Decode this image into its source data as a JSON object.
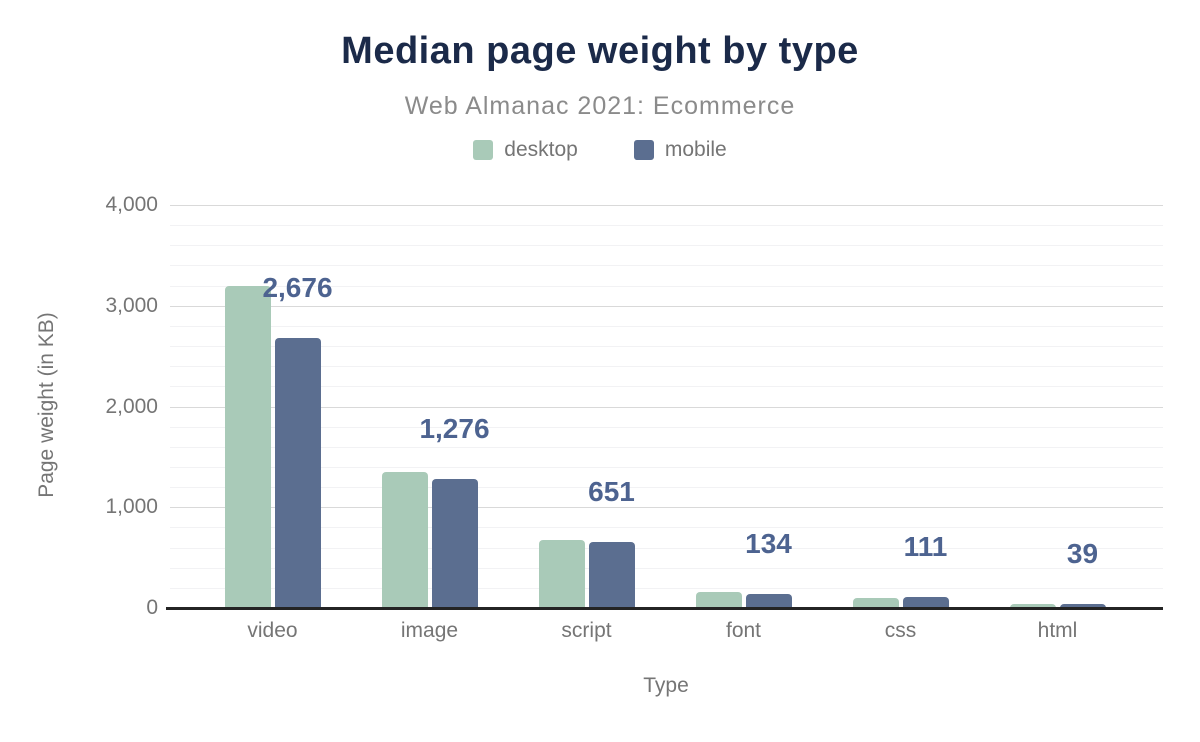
{
  "chart_data": {
    "type": "bar",
    "title": "Median page weight by type",
    "subtitle": "Web Almanac 2021: Ecommerce",
    "xlabel": "Type",
    "ylabel": "Page weight (in KB)",
    "categories": [
      "video",
      "image",
      "script",
      "font",
      "css",
      "html"
    ],
    "series": [
      {
        "name": "desktop",
        "color": "#a9cab8",
        "values": [
          3200,
          1350,
          675,
          160,
          100,
          42
        ]
      },
      {
        "name": "mobile",
        "color": "#5b6e90",
        "values": [
          2676,
          1276,
          651,
          134,
          111,
          39
        ],
        "data_labels": [
          "2,676",
          "1,276",
          "651",
          "134",
          "111",
          "39"
        ]
      }
    ],
    "ylim": [
      0,
      4000
    ],
    "yticks": [
      {
        "value": 0,
        "label": "0"
      },
      {
        "value": 1000,
        "label": "1,000"
      },
      {
        "value": 2000,
        "label": "2,000"
      },
      {
        "value": 3000,
        "label": "3,000"
      },
      {
        "value": 4000,
        "label": "4,000"
      }
    ],
    "minor_grid_step": 200,
    "grid": true,
    "legend_position": "top"
  },
  "colors": {
    "title": "#1b2a49",
    "subtitle": "#8b8b8b",
    "axis_text": "#757575",
    "value_label": "#4d6390",
    "major_grid": "#d9d9d9",
    "minor_grid": "#f2f2f4",
    "baseline": "#242424",
    "desktop": "#a9cab8",
    "mobile": "#5b6e90"
  }
}
